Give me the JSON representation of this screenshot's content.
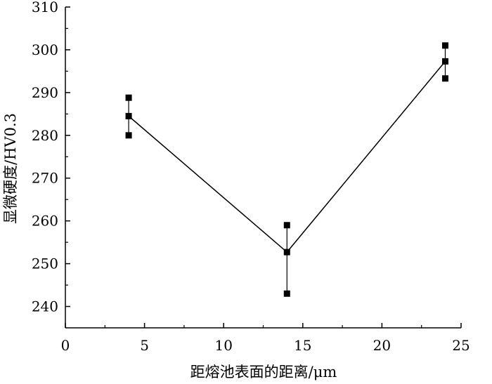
{
  "chart_data": {
    "type": "line",
    "title": "",
    "xlabel": "距熔池表面的距离/μm",
    "ylabel": "显微硬度/HV0.3",
    "xlim": [
      0,
      25
    ],
    "ylim": [
      235,
      310
    ],
    "xticks": [
      0,
      5,
      10,
      15,
      20,
      25
    ],
    "yticks": [
      240,
      250,
      260,
      270,
      280,
      290,
      300,
      310
    ],
    "grid": false,
    "legend": "none",
    "series": [
      {
        "x": [
          4,
          14,
          24
        ],
        "y": [
          284.5,
          252.7,
          297.3
        ],
        "error_upper": [
          288.8,
          259.0,
          301.0
        ],
        "error_lower": [
          280.0,
          243.0,
          293.3
        ]
      }
    ],
    "colors": {
      "line": "#000000",
      "marker": "#000000",
      "axis": "#000000"
    }
  }
}
